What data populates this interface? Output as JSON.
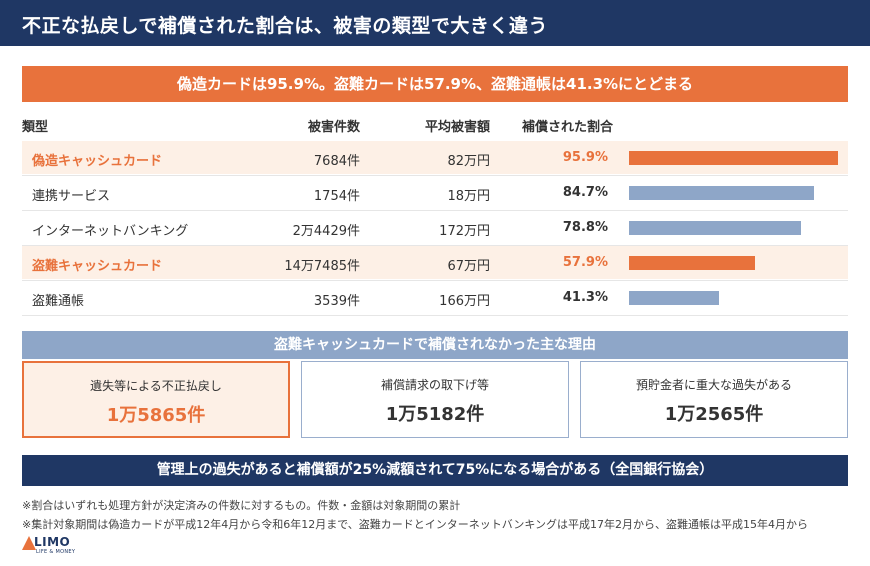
{
  "header": {
    "title": "不正な払戻しで補償された割合は、被害の類型で大きく違う"
  },
  "summary_banner": "偽造カードは95.9%。盗難カードは57.9%、盗難通帳は41.3%にとどまる",
  "table": {
    "headers": [
      "類型",
      "被害件数",
      "平均被害額",
      "補償された割合"
    ],
    "rows": [
      {
        "name": "偽造キャッシュカード",
        "count": "7684件",
        "avg": "82万円",
        "pct_label": "95.9%",
        "highlight": true
      },
      {
        "name": "連携サービス",
        "count": "1754件",
        "avg": "18万円",
        "pct_label": "84.7%",
        "highlight": false
      },
      {
        "name": "インターネットバンキング",
        "count": "2万4429件",
        "avg": "172万円",
        "pct_label": "78.8%",
        "highlight": false
      },
      {
        "name": "盗難キャッシュカード",
        "count": "14万7485件",
        "avg": "67万円",
        "pct_label": "57.9%",
        "highlight": true
      },
      {
        "name": "盗難通帳",
        "count": "3539件",
        "avg": "166万円",
        "pct_label": "41.3%",
        "highlight": false
      }
    ]
  },
  "chart_data": {
    "type": "bar",
    "categories": [
      "偽造キャッシュカード",
      "連携サービス",
      "インターネットバンキング",
      "盗難キャッシュカード",
      "盗難通帳"
    ],
    "values": [
      95.9,
      84.7,
      78.8,
      57.9,
      41.3
    ],
    "ylabel": "補償された割合",
    "ylim": [
      0,
      100
    ],
    "colors": [
      "#e8723c",
      "#8ea6c8",
      "#8ea6c8",
      "#e8723c",
      "#8ea6c8"
    ]
  },
  "reasons": {
    "title": "盗難キャッシュカードで補償されなかった主な理由",
    "items": [
      {
        "label": "遺失等による不正払戻し",
        "value": "1万5865件",
        "highlight": true
      },
      {
        "label": "補償請求の取下げ等",
        "value": "1万5182件",
        "highlight": false
      },
      {
        "label": "預貯金者に重大な過失がある",
        "value": "1万2565件",
        "highlight": false
      }
    ]
  },
  "bottom_banner": "管理上の過失があると補償額が25%減額されて75%になる場合がある（全国銀行協会）",
  "notes": [
    "※割合はいずれも処理方針が決定済みの件数に対するもの。件数・金額は対象期間の累計",
    "※集計対象期間は偽造カードが平成12年4月から令和6年12月まで、盗難カードとインターネットバンキングは平成17年2月から、盗難通帳は平成15年4月から"
  ],
  "logo": {
    "text": "LIMO",
    "sub": "LIFE & MONEY"
  },
  "colors": {
    "navy": "#1f3764",
    "orange": "#e8723c",
    "blue": "#8ea6c8"
  }
}
